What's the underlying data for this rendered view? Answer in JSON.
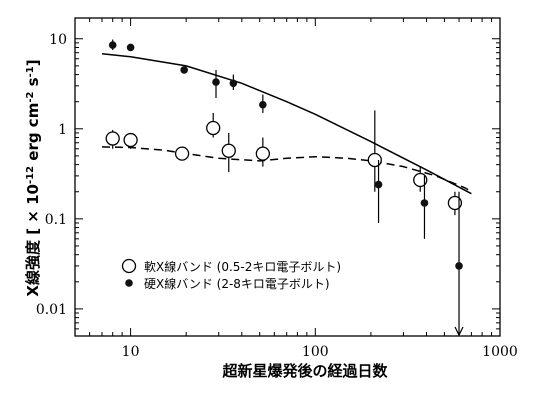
{
  "chart_data": {
    "type": "scatter",
    "xlabel": "超新星爆発後の経過日数",
    "ylabel_prefix": "X線強度 [ × 10",
    "ylabel_exp1": "-12",
    "ylabel_mid1": " erg cm",
    "ylabel_exp2": "-2",
    "ylabel_mid2": " s",
    "ylabel_exp3": "-1",
    "ylabel_suffix": "]",
    "xscale": "log",
    "yscale": "log",
    "xlim": [
      5,
      1000
    ],
    "ylim": [
      0.005,
      17
    ],
    "x_ticks": [
      {
        "value": 10,
        "label": "10"
      },
      {
        "value": 100,
        "label": "100"
      },
      {
        "value": 1000,
        "label": "1000"
      }
    ],
    "y_ticks": [
      {
        "value": 0.01,
        "label": "0.01"
      },
      {
        "value": 0.1,
        "label": "0.1"
      },
      {
        "value": 1,
        "label": "1"
      },
      {
        "value": 10,
        "label": "10"
      }
    ],
    "legend": {
      "position": "lower-left",
      "entries": [
        {
          "name": "軟X線バンド (0.5-2キロ電子ボルト)",
          "marker": "open-circle"
        },
        {
          "name": "硬X線バンド (2-8キロ電子ボルト)",
          "marker": "filled-circle"
        }
      ]
    },
    "series": [
      {
        "name": "軟X線バンド (0.5-2キロ電子ボルト)",
        "marker": "open-circle",
        "points": [
          {
            "x": 8,
            "y": 0.78,
            "ylo": 0.6,
            "yhi": 0.97
          },
          {
            "x": 10,
            "y": 0.75,
            "ylo": 0.6,
            "yhi": 0.9
          },
          {
            "x": 19,
            "y": 0.53,
            "ylo": 0.46,
            "yhi": 0.6
          },
          {
            "x": 28,
            "y": 1.02,
            "ylo": 0.8,
            "yhi": 1.5
          },
          {
            "x": 34,
            "y": 0.57,
            "ylo": 0.33,
            "yhi": 0.9
          },
          {
            "x": 52,
            "y": 0.53,
            "ylo": 0.38,
            "yhi": 0.8
          },
          {
            "x": 210,
            "y": 0.45,
            "ylo": 0.2,
            "yhi": 1.6
          },
          {
            "x": 370,
            "y": 0.27,
            "ylo": 0.2,
            "yhi": 0.38
          },
          {
            "x": 570,
            "y": 0.15,
            "ylo": 0.11,
            "yhi": 0.2
          }
        ]
      },
      {
        "name": "硬X線バンド (2-8キロ電子ボルト)",
        "marker": "filled-circle",
        "points": [
          {
            "x": 8,
            "y": 8.5,
            "ylo": 7.5,
            "yhi": 9.8
          },
          {
            "x": 10,
            "y": 8.0,
            "ylo": 7.5,
            "yhi": 8.5
          },
          {
            "x": 19.5,
            "y": 4.5,
            "ylo": 4.2,
            "yhi": 4.8
          },
          {
            "x": 29,
            "y": 3.3,
            "ylo": 2.2,
            "yhi": 4.5
          },
          {
            "x": 36,
            "y": 3.2,
            "ylo": 2.7,
            "yhi": 4.0
          },
          {
            "x": 52,
            "y": 1.85,
            "ylo": 1.5,
            "yhi": 2.4
          },
          {
            "x": 220,
            "y": 0.24,
            "ylo": 0.09,
            "yhi": 0.45
          },
          {
            "x": 390,
            "y": 0.15,
            "ylo": 0.06,
            "yhi": 0.3
          },
          {
            "x": 600,
            "y": 0.03,
            "ylo": 0.005,
            "yhi": 0.2
          }
        ]
      }
    ],
    "curves": [
      {
        "style": "solid",
        "points": [
          [
            7,
            6.8
          ],
          [
            10,
            6.3
          ],
          [
            20,
            5.0
          ],
          [
            40,
            3.2
          ],
          [
            70,
            2.0
          ],
          [
            100,
            1.45
          ],
          [
            200,
            0.72
          ],
          [
            400,
            0.35
          ],
          [
            700,
            0.19
          ]
        ]
      },
      {
        "style": "dashed",
        "points": [
          [
            7,
            0.63
          ],
          [
            10,
            0.62
          ],
          [
            15,
            0.58
          ],
          [
            20,
            0.53
          ],
          [
            30,
            0.47
          ],
          [
            50,
            0.44
          ],
          [
            70,
            0.47
          ],
          [
            100,
            0.49
          ],
          [
            150,
            0.47
          ],
          [
            200,
            0.44
          ],
          [
            300,
            0.38
          ],
          [
            450,
            0.3
          ],
          [
            650,
            0.22
          ],
          [
            700,
            0.2
          ]
        ]
      }
    ]
  }
}
